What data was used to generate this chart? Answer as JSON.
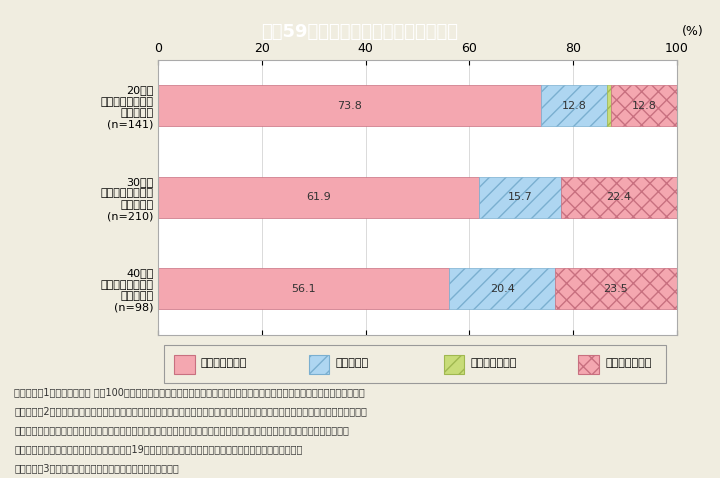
{
  "title": "特－59図　シングルマザーの最終学歴",
  "title_bg": "#4DAABD",
  "categories": [
    "20代で\nシングルマザーに\nなった女性\n(n=141)",
    "30代で\nシングルマザーに\nなった女性\n(n=210)",
    "40代で\nシングルマザーに\nなった女性\n(n=98)"
  ],
  "series": [
    {
      "label": "中学校・高校卒",
      "values": [
        73.8,
        61.9,
        56.1
      ],
      "color": "#F4A7B0",
      "hatch": ""
    },
    {
      "label": "短期大学卒",
      "values": [
        12.8,
        15.7,
        20.4
      ],
      "color": "#AED6F1",
      "hatch": "xx"
    },
    {
      "label": "高等専門学校卒",
      "values": [
        0.7,
        0.0,
        0.0
      ],
      "color": "#D4E6A5",
      "hatch": "xx"
    },
    {
      "label": "大学・大学院卒",
      "values": [
        12.8,
        22.4,
        23.5
      ],
      "color": "#F4A7B0",
      "hatch": "xx"
    }
  ],
  "xlim": [
    0,
    100
  ],
  "xticks": [
    0,
    20,
    40,
    60,
    80,
    100
  ],
  "xlabel_suffix": "(%)",
  "bg_color": "#F0EDE0",
  "plot_bg": "#FFFFFF",
  "bar_height": 0.45,
  "notes": [
    "（備考）　1．「令和３年度 人生100年時代における結婚・仕事・収入に関する調査」（令和３年度内閣府委託調査）より作成。",
    "　　　　　2．ここでの「シングルマザー」は、離婚・死別経験があり子供がいる女性で、「離婚時の年齢」「第一子を持った年齢」",
    "　　　　　　のどちらも回答している人、かつ、最初に離婚した時に第一子がいる（離婚時の年齢が第一子を持った年齢を上回",
    "　　　　　　る）人、かつ、離婚時に子供が19歳以下の人、かつ現在配偶者がいない人を対象としている。",
    "　　　　　3．「中学校・高校卒」には、専門学校卒も含む。"
  ]
}
